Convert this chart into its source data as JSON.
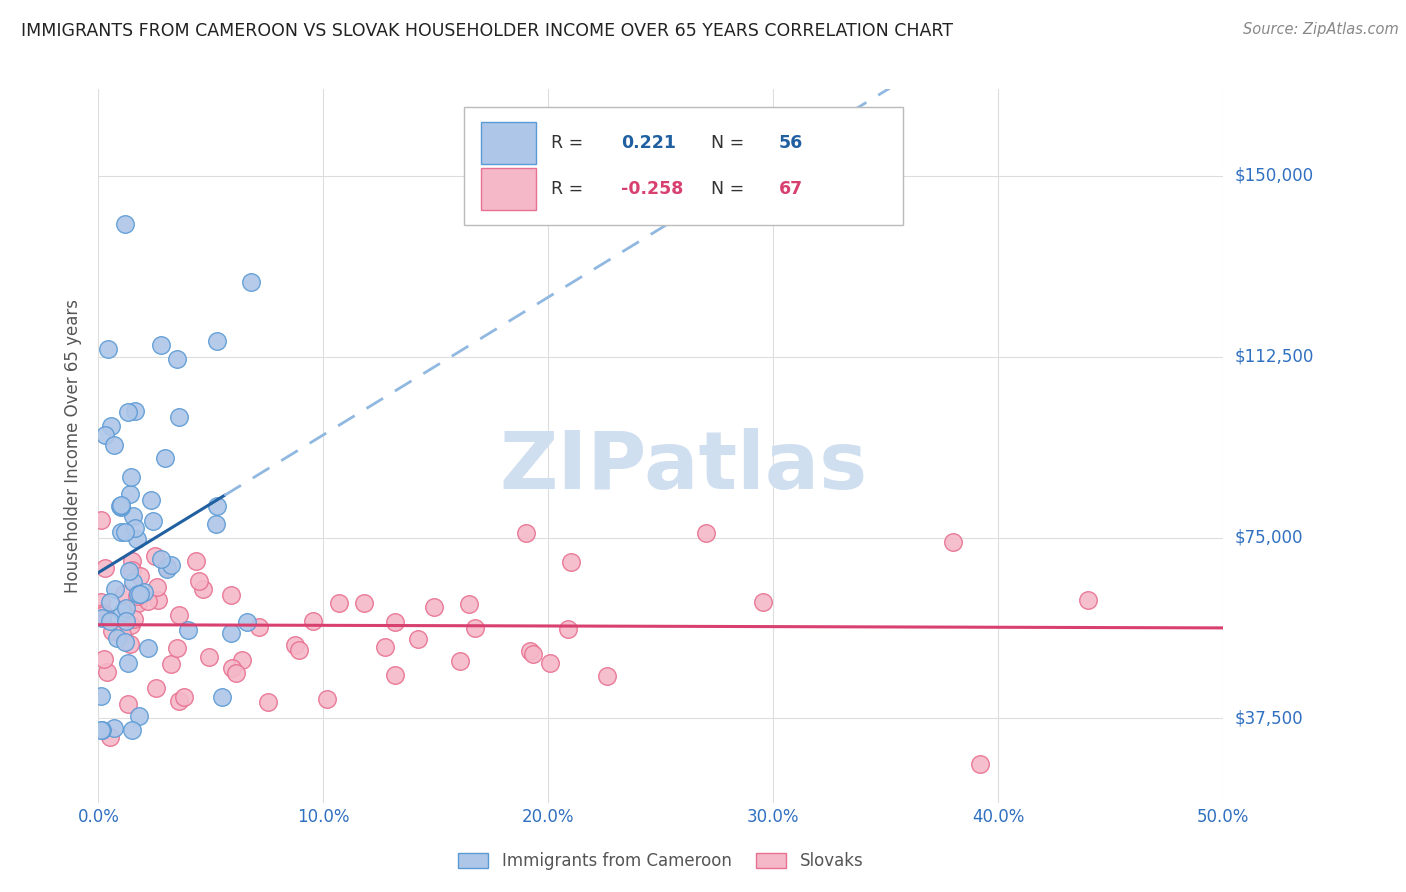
{
  "title": "IMMIGRANTS FROM CAMEROON VS SLOVAK HOUSEHOLDER INCOME OVER 65 YEARS CORRELATION CHART",
  "source": "Source: ZipAtlas.com",
  "ylabel_label": "Householder Income Over 65 years",
  "cameroon_color": "#aec6e8",
  "cameroon_edge": "#5b9bd5",
  "slovak_color": "#f4b8c8",
  "slovak_edge": "#e87090",
  "line_blue": "#2060a0",
  "line_pink": "#d84070",
  "line_dash_color": "#90b8e0",
  "background": "#ffffff",
  "grid_color": "#dddddd",
  "title_color": "#222222",
  "right_label_color": "#3070c0",
  "watermark_color": "#d0dff0",
  "R_cameroon": 0.221,
  "N_cameroon": 56,
  "R_slovak": -0.258,
  "N_slovak": 67,
  "xlim": [
    0.0,
    0.5
  ],
  "ylim": [
    20000,
    168000
  ],
  "yticks": [
    37500,
    75000,
    112500,
    150000
  ],
  "xticks": [
    0.0,
    0.1,
    0.2,
    0.3,
    0.4,
    0.5
  ]
}
